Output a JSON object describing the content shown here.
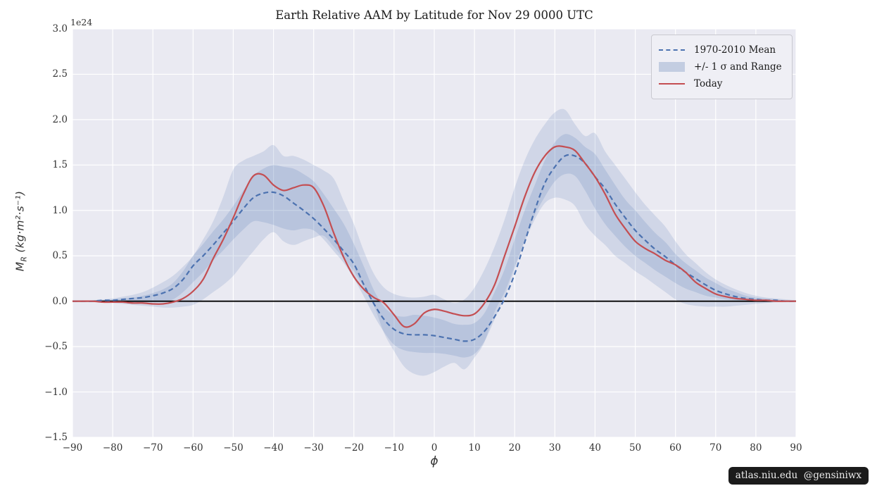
{
  "figure": {
    "title": "Earth Relative AAM by Latitude for Nov 29 0000 UTC",
    "watermark": "atlas.niu.edu  @gensiniwx"
  },
  "chart_data": {
    "type": "line",
    "title": "Earth Relative AAM by Latitude for Nov 29 0000 UTC",
    "xlabel": "ϕ",
    "ylabel_main": "M",
    "ylabel_sub": "R",
    "ylabel_units": " (kg·m²·s⁻¹)",
    "offset_label": "1e24",
    "xlim": [
      -90,
      90
    ],
    "ylim": [
      -1.5,
      3.0
    ],
    "grid": true,
    "legend_position": "upper right",
    "xtick_values": [
      -90,
      -80,
      -70,
      -60,
      -50,
      -40,
      -30,
      -20,
      -10,
      0,
      10,
      20,
      30,
      40,
      50,
      60,
      70,
      80,
      90
    ],
    "xtick_labels": [
      "−90",
      "−80",
      "−70",
      "−60",
      "−50",
      "−40",
      "−30",
      "−20",
      "−10",
      "0",
      "10",
      "20",
      "30",
      "40",
      "50",
      "60",
      "70",
      "80",
      "90"
    ],
    "ytick_values": [
      3.0,
      2.5,
      2.0,
      1.5,
      1.0,
      0.5,
      0.0,
      -0.5,
      -1.0,
      -1.5
    ],
    "ytick_labels": [
      "3.0",
      "2.5",
      "2.0",
      "1.5",
      "1.0",
      "0.5",
      "0.0",
      "−0.5",
      "−1.0",
      "−1.5"
    ],
    "colors": {
      "mean": "#4c72b0",
      "today": "#c44e52",
      "band": "#4c72b0",
      "band_opacity": 0.16,
      "legend_patch": "#c3cde1",
      "background": "#eaeaf2",
      "grid": "#ffffff",
      "zero_line": "#000000"
    },
    "legend": [
      {
        "label": "1970-2010 Mean",
        "type": "dashed-line"
      },
      {
        "label": "+/- 1 σ and Range",
        "type": "patch"
      },
      {
        "label": "Today",
        "type": "line"
      }
    ],
    "x": [
      -90,
      -87.5,
      -85,
      -82.5,
      -80,
      -77.5,
      -75,
      -72.5,
      -70,
      -67.5,
      -65,
      -62.5,
      -60,
      -57.5,
      -55,
      -52.5,
      -50,
      -47.5,
      -45,
      -42.5,
      -40,
      -37.5,
      -35,
      -32.5,
      -30,
      -27.5,
      -25,
      -22.5,
      -20,
      -17.5,
      -15,
      -12.5,
      -10,
      -7.5,
      -5,
      -2.5,
      0,
      2.5,
      5,
      7.5,
      10,
      12.5,
      15,
      17.5,
      20,
      22.5,
      25,
      27.5,
      30,
      32.5,
      35,
      37.5,
      40,
      42.5,
      45,
      47.5,
      50,
      52.5,
      55,
      57.5,
      60,
      62.5,
      65,
      67.5,
      70,
      72.5,
      75,
      77.5,
      80,
      82.5,
      85,
      87.5,
      90
    ],
    "series": [
      {
        "name": "1970-2010 Mean",
        "style": "dashed",
        "values": [
          0.0,
          0.0,
          0.0,
          0.01,
          0.01,
          0.02,
          0.03,
          0.04,
          0.06,
          0.09,
          0.14,
          0.24,
          0.39,
          0.5,
          0.62,
          0.75,
          0.88,
          1.02,
          1.14,
          1.19,
          1.2,
          1.16,
          1.08,
          1.0,
          0.91,
          0.8,
          0.68,
          0.55,
          0.41,
          0.18,
          -0.03,
          -0.2,
          -0.31,
          -0.36,
          -0.37,
          -0.37,
          -0.38,
          -0.4,
          -0.42,
          -0.44,
          -0.42,
          -0.33,
          -0.17,
          0.03,
          0.3,
          0.65,
          1.0,
          1.3,
          1.48,
          1.6,
          1.6,
          1.52,
          1.37,
          1.24,
          1.07,
          0.92,
          0.78,
          0.67,
          0.57,
          0.49,
          0.4,
          0.32,
          0.25,
          0.18,
          0.12,
          0.08,
          0.05,
          0.03,
          0.02,
          0.01,
          0.01,
          0.0,
          0.0
        ]
      },
      {
        "name": "Today",
        "style": "solid",
        "values": [
          0.0,
          0.0,
          0.0,
          -0.01,
          -0.01,
          -0.01,
          -0.02,
          -0.02,
          -0.03,
          -0.03,
          -0.01,
          0.03,
          0.11,
          0.24,
          0.47,
          0.68,
          0.92,
          1.18,
          1.38,
          1.39,
          1.28,
          1.22,
          1.25,
          1.28,
          1.25,
          1.05,
          0.75,
          0.48,
          0.27,
          0.13,
          0.04,
          -0.02,
          -0.15,
          -0.28,
          -0.25,
          -0.13,
          -0.09,
          -0.11,
          -0.14,
          -0.16,
          -0.14,
          -0.02,
          0.18,
          0.5,
          0.82,
          1.15,
          1.42,
          1.6,
          1.7,
          1.7,
          1.66,
          1.52,
          1.37,
          1.18,
          0.96,
          0.8,
          0.66,
          0.58,
          0.52,
          0.45,
          0.4,
          0.32,
          0.21,
          0.14,
          0.08,
          0.05,
          0.03,
          0.02,
          0.01,
          0.01,
          0.0,
          0.0,
          0.0
        ]
      }
    ],
    "bands": [
      {
        "name": "range",
        "upper": [
          0.0,
          0.01,
          0.01,
          0.02,
          0.03,
          0.05,
          0.07,
          0.1,
          0.15,
          0.21,
          0.28,
          0.38,
          0.5,
          0.68,
          0.88,
          1.15,
          1.45,
          1.55,
          1.6,
          1.65,
          1.72,
          1.6,
          1.6,
          1.56,
          1.5,
          1.44,
          1.35,
          1.1,
          0.85,
          0.55,
          0.3,
          0.15,
          0.08,
          0.05,
          0.04,
          0.05,
          0.07,
          0.02,
          -0.02,
          0.02,
          0.15,
          0.35,
          0.6,
          0.9,
          1.25,
          1.55,
          1.78,
          1.95,
          2.08,
          2.11,
          1.95,
          1.82,
          1.85,
          1.65,
          1.5,
          1.35,
          1.2,
          1.06,
          0.94,
          0.82,
          0.66,
          0.52,
          0.42,
          0.32,
          0.24,
          0.18,
          0.13,
          0.09,
          0.06,
          0.04,
          0.03,
          0.02,
          0.01
        ],
        "lower": [
          0.0,
          0.0,
          -0.01,
          -0.01,
          -0.02,
          -0.03,
          -0.04,
          -0.05,
          -0.06,
          -0.07,
          -0.07,
          -0.06,
          -0.04,
          0.02,
          0.1,
          0.18,
          0.28,
          0.42,
          0.55,
          0.68,
          0.76,
          0.66,
          0.62,
          0.66,
          0.7,
          0.72,
          0.6,
          0.47,
          0.33,
          0.15,
          -0.05,
          -0.35,
          -0.55,
          -0.72,
          -0.8,
          -0.82,
          -0.78,
          -0.72,
          -0.68,
          -0.75,
          -0.62,
          -0.45,
          -0.12,
          0.1,
          0.38,
          0.65,
          0.9,
          1.08,
          1.14,
          1.12,
          1.05,
          0.85,
          0.72,
          0.62,
          0.5,
          0.42,
          0.33,
          0.26,
          0.18,
          0.1,
          0.02,
          -0.03,
          -0.05,
          -0.06,
          -0.06,
          -0.06,
          -0.05,
          -0.04,
          -0.03,
          -0.02,
          -0.01,
          0.0,
          0.0
        ]
      },
      {
        "name": "sigma",
        "upper": [
          0.0,
          0.0,
          0.01,
          0.01,
          0.02,
          0.03,
          0.04,
          0.06,
          0.09,
          0.13,
          0.2,
          0.33,
          0.5,
          0.63,
          0.77,
          0.9,
          1.05,
          1.22,
          1.38,
          1.46,
          1.5,
          1.48,
          1.46,
          1.4,
          1.32,
          1.18,
          1.02,
          0.85,
          0.63,
          0.38,
          0.12,
          -0.06,
          -0.15,
          -0.17,
          -0.15,
          -0.16,
          -0.18,
          -0.21,
          -0.25,
          -0.26,
          -0.24,
          -0.13,
          0.1,
          0.35,
          0.68,
          1.0,
          1.28,
          1.55,
          1.75,
          1.84,
          1.8,
          1.7,
          1.62,
          1.45,
          1.28,
          1.12,
          1.0,
          0.87,
          0.75,
          0.65,
          0.52,
          0.42,
          0.34,
          0.26,
          0.2,
          0.14,
          0.1,
          0.06,
          0.04,
          0.03,
          0.02,
          0.01,
          0.01
        ],
        "lower": [
          0.0,
          0.0,
          0.0,
          0.0,
          -0.01,
          -0.01,
          -0.01,
          -0.01,
          -0.01,
          0.0,
          0.02,
          0.1,
          0.21,
          0.32,
          0.45,
          0.56,
          0.68,
          0.79,
          0.88,
          0.87,
          0.84,
          0.8,
          0.78,
          0.8,
          0.78,
          0.68,
          0.55,
          0.42,
          0.25,
          0.05,
          -0.16,
          -0.34,
          -0.48,
          -0.54,
          -0.56,
          -0.57,
          -0.57,
          -0.58,
          -0.6,
          -0.62,
          -0.58,
          -0.44,
          -0.2,
          0.05,
          0.35,
          0.68,
          0.95,
          1.15,
          1.32,
          1.4,
          1.38,
          1.22,
          1.02,
          0.85,
          0.72,
          0.6,
          0.5,
          0.42,
          0.34,
          0.27,
          0.2,
          0.14,
          0.1,
          0.06,
          0.04,
          0.02,
          0.01,
          0.01,
          0.0,
          0.0,
          0.0,
          0.0,
          0.0
        ]
      }
    ]
  }
}
